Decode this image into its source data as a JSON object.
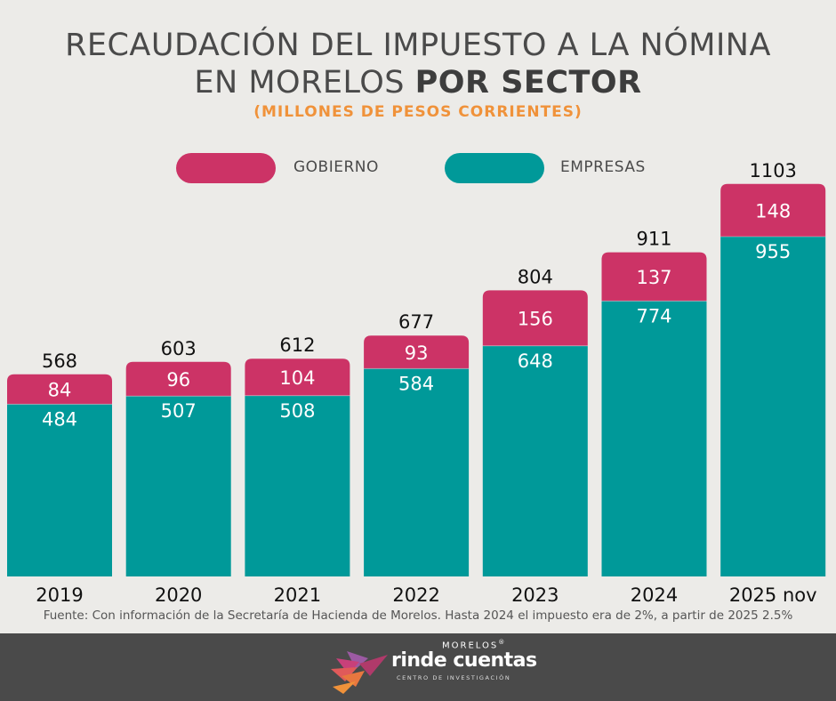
{
  "title": {
    "line1": "RECAUDACIÓN DEL IMPUESTO A LA NÓMINA",
    "line2_plain": "EN MORELOS ",
    "line2_bold": "POR SECTOR",
    "subtitle": "(MILLONES DE PESOS CORRIENTES)"
  },
  "legend": {
    "gobierno": "GOBIERNO",
    "empresas": "EMPRESAS"
  },
  "colors": {
    "gobierno": "#cc3366",
    "empresas": "#009999",
    "background": "#ecebe8",
    "subtitle": "#f0923a"
  },
  "chart_data": {
    "type": "bar",
    "stacked": true,
    "categories": [
      "2019",
      "2020",
      "2021",
      "2022",
      "2023",
      "2024",
      "2025 nov"
    ],
    "series": [
      {
        "name": "EMPRESAS",
        "values": [
          484,
          507,
          508,
          584,
          648,
          774,
          955
        ]
      },
      {
        "name": "GOBIERNO",
        "values": [
          84,
          96,
          104,
          93,
          156,
          137,
          148
        ]
      }
    ],
    "totals": [
      568,
      603,
      612,
      677,
      804,
      911,
      1103
    ],
    "title": "RECAUDACIÓN DEL IMPUESTO A LA NÓMINA EN MORELOS POR SECTOR",
    "subtitle": "(MILLONES DE PESOS CORRIENTES)",
    "xlabel": "",
    "ylabel": "",
    "grid": false,
    "legend_position": "top"
  },
  "source": "Fuente: Con información de la Secretaría de Hacienda de Morelos. Hasta 2024 el impuesto era de 2%, a partir de 2025 2.5%",
  "footer": {
    "brand_top": "MORELOS",
    "brand_reg": "®",
    "brand_main": "rinde cuentas",
    "brand_sub": "CENTRO DE INVESTIGACIÓN"
  }
}
